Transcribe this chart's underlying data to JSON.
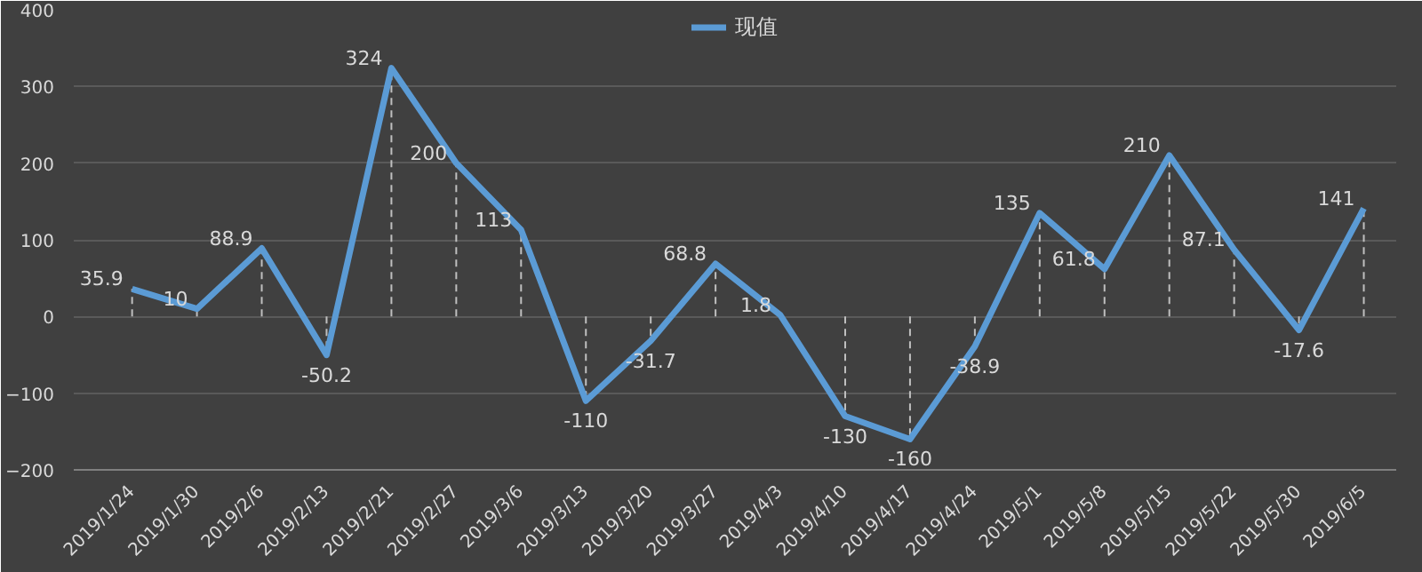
{
  "chart_data": {
    "type": "line",
    "categories": [
      "2019/1/24",
      "2019/1/30",
      "2019/2/6",
      "2019/2/13",
      "2019/2/21",
      "2019/2/27",
      "2019/3/6",
      "2019/3/13",
      "2019/3/20",
      "2019/3/27",
      "2019/4/3",
      "2019/4/10",
      "2019/4/17",
      "2019/4/24",
      "2019/5/1",
      "2019/5/8",
      "2019/5/15",
      "2019/5/22",
      "2019/5/30",
      "2019/6/5"
    ],
    "series": [
      {
        "name": "现值",
        "color": "#5b9bd5",
        "values": [
          35.9,
          10,
          88.9,
          -50.2,
          324,
          200,
          113,
          -110,
          -31.7,
          68.8,
          1.8,
          -130,
          -160,
          -38.9,
          135,
          61.8,
          210,
          87.1,
          -17.6,
          141
        ]
      }
    ],
    "ylim": [
      -200,
      400
    ],
    "yticks": [
      -200,
      -100,
      0,
      100,
      200,
      300,
      400
    ],
    "grid": "y",
    "legend": "top",
    "data_labels": true,
    "marker": "none",
    "line_style": "solid"
  }
}
